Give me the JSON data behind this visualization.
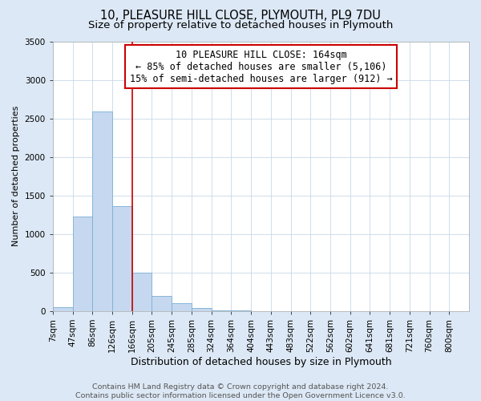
{
  "title": "10, PLEASURE HILL CLOSE, PLYMOUTH, PL9 7DU",
  "subtitle": "Size of property relative to detached houses in Plymouth",
  "xlabel": "Distribution of detached houses by size in Plymouth",
  "ylabel": "Number of detached properties",
  "bin_labels": [
    "7sqm",
    "47sqm",
    "86sqm",
    "126sqm",
    "166sqm",
    "205sqm",
    "245sqm",
    "285sqm",
    "324sqm",
    "364sqm",
    "404sqm",
    "443sqm",
    "483sqm",
    "522sqm",
    "562sqm",
    "602sqm",
    "641sqm",
    "681sqm",
    "721sqm",
    "760sqm",
    "800sqm"
  ],
  "bar_values": [
    50,
    1230,
    2590,
    1360,
    500,
    200,
    105,
    40,
    10,
    5,
    2,
    1,
    0,
    0,
    0,
    0,
    0,
    0,
    0,
    0,
    0
  ],
  "bar_color": "#c5d8ef",
  "bar_edge_color": "#7aafd4",
  "vline_x": 4,
  "vline_color": "#cc0000",
  "annotation_box_text": "10 PLEASURE HILL CLOSE: 164sqm\n← 85% of detached houses are smaller (5,106)\n15% of semi-detached houses are larger (912) →",
  "ylim": [
    0,
    3500
  ],
  "yticks": [
    0,
    500,
    1000,
    1500,
    2000,
    2500,
    3000,
    3500
  ],
  "footer_line1": "Contains HM Land Registry data © Crown copyright and database right 2024.",
  "footer_line2": "Contains public sector information licensed under the Open Government Licence v3.0.",
  "bg_color": "#dce8f5",
  "plot_bg_color": "#ffffff",
  "title_fontsize": 10.5,
  "subtitle_fontsize": 9.5,
  "xlabel_fontsize": 9,
  "ylabel_fontsize": 8,
  "tick_fontsize": 7.5,
  "annotation_fontsize": 8.5,
  "footer_fontsize": 6.8,
  "grid_color": "#c8d8e8"
}
